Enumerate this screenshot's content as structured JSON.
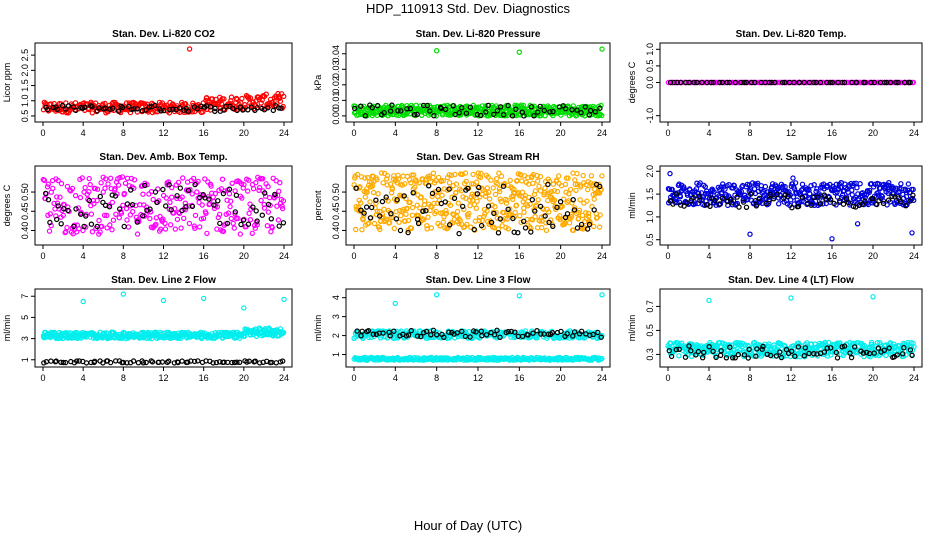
{
  "page": {
    "title": "HDP_110913  Std. Dev. Diagnostics",
    "x_title": "Hour of Day (UTC)"
  },
  "chart_data": [
    {
      "id": "co2",
      "type": "scatter",
      "title": "Stan. Dev. Li-820 CO2",
      "ylabel": "Licor ppm",
      "xlim": [
        0,
        24
      ],
      "ylim": [
        0.4,
        2.8
      ],
      "yticks": [
        "0.5",
        "1.0",
        "1.5",
        "2.0",
        "2.5"
      ],
      "ytick_values": [
        0.5,
        1.0,
        1.5,
        2.0,
        2.5
      ],
      "xticks": [
        0,
        4,
        8,
        12,
        16,
        20,
        24
      ],
      "series": [
        {
          "color": "#ff0000",
          "band": [
            0.6,
            0.95
          ],
          "count": 300,
          "extra": [
            [
              14.6,
              2.7
            ],
            [
              16.3,
              1.1
            ]
          ],
          "drift": [
            [
              16,
              0.15
            ],
            [
              24,
              0.3
            ]
          ]
        },
        {
          "color": "#000000",
          "band": [
            0.65,
            0.85
          ],
          "count": 70
        }
      ]
    },
    {
      "id": "pressure",
      "type": "scatter",
      "title": "Stan. Dev. Li-820 Pressure",
      "ylabel": "kPa",
      "xlim": [
        0,
        24
      ],
      "ylim": [
        -0.002,
        0.045
      ],
      "yticks": [
        "0.00",
        "0.01",
        "0.02",
        "0.03",
        "0.04"
      ],
      "ytick_values": [
        0,
        0.01,
        0.02,
        0.03,
        0.04
      ],
      "xticks": [
        0,
        4,
        8,
        12,
        16,
        20,
        24
      ],
      "series": [
        {
          "color": "#00dd00",
          "band": [
            0.0,
            0.007
          ],
          "count": 420,
          "extra": [
            [
              8,
              0.042
            ],
            [
              16,
              0.041
            ],
            [
              24,
              0.043
            ]
          ]
        },
        {
          "color": "#000000",
          "band": [
            0.0,
            0.007
          ],
          "count": 60
        }
      ]
    },
    {
      "id": "temp",
      "type": "scatter",
      "title": "Stan. Dev. Li-820 Temp.",
      "ylabel": "degrees C",
      "xlim": [
        0,
        24
      ],
      "ylim": [
        -1.1,
        1.1
      ],
      "yticks": [
        "-1.0",
        "0.0",
        "0.5",
        "1.0"
      ],
      "ytick_values": [
        -1.0,
        0.0,
        0.5,
        1.0
      ],
      "xticks": [
        0,
        4,
        8,
        12,
        16,
        20,
        24
      ],
      "series": [
        {
          "color": "#ff00ff",
          "band": [
            0.0,
            0.0
          ],
          "count": 180
        },
        {
          "color": "#000000",
          "band": [
            0.0,
            0.0
          ],
          "count": 60
        }
      ]
    },
    {
      "id": "ambbox",
      "type": "scatter",
      "title": "Stan. Dev. Amb. Box Temp.",
      "ylabel": "degrees C",
      "xlim": [
        0,
        24
      ],
      "ylim": [
        0.37,
        0.56
      ],
      "yticks": [
        "0.40",
        "0.45",
        "0.50"
      ],
      "ytick_values": [
        0.4,
        0.45,
        0.5
      ],
      "xticks": [
        0,
        4,
        8,
        12,
        16,
        20,
        24
      ],
      "series": [
        {
          "color": "#ff00ff",
          "band": [
            0.39,
            0.54
          ],
          "count": 320
        },
        {
          "color": "#000000",
          "band": [
            0.41,
            0.52
          ],
          "count": 70
        }
      ]
    },
    {
      "id": "rh",
      "type": "scatter",
      "title": "Stan. Dev. Gas Stream RH",
      "ylabel": "percent",
      "xlim": [
        0,
        24
      ],
      "ylim": [
        0.37,
        0.56
      ],
      "yticks": [
        "0.40",
        "0.45",
        "0.50"
      ],
      "ytick_values": [
        0.4,
        0.45,
        0.5
      ],
      "xticks": [
        0,
        4,
        8,
        12,
        16,
        20,
        24
      ],
      "series": [
        {
          "color": "#ffaa00",
          "band": [
            0.4,
            0.55
          ],
          "count": 520
        },
        {
          "color": "#000000",
          "band": [
            0.39,
            0.52
          ],
          "count": 70
        }
      ]
    },
    {
      "id": "sampleflow",
      "type": "scatter",
      "title": "Stan. Dev. Sample Flow",
      "ylabel": "ml/min",
      "xlim": [
        0,
        24
      ],
      "ylim": [
        0.45,
        2.05
      ],
      "yticks": [
        "0.5",
        "1.0",
        "1.5",
        "2.0"
      ],
      "ytick_values": [
        0.5,
        1.0,
        1.5,
        2.0
      ],
      "xticks": [
        0,
        4,
        8,
        12,
        16,
        20,
        24
      ],
      "series": [
        {
          "color": "#0000dd",
          "band": [
            1.25,
            1.75
          ],
          "count": 420,
          "extra": [
            [
              0.2,
              1.95
            ],
            [
              8,
              0.62
            ],
            [
              16,
              0.52
            ],
            [
              18.5,
              0.85
            ],
            [
              23.8,
              0.65
            ],
            [
              12.2,
              1.85
            ]
          ]
        },
        {
          "color": "#000000",
          "band": [
            1.2,
            1.5
          ],
          "count": 70
        }
      ]
    },
    {
      "id": "line2",
      "type": "scatter",
      "title": "Stan. Dev. Line 2 Flow",
      "ylabel": "ml/min",
      "xlim": [
        0,
        24
      ],
      "ylim": [
        0.6,
        7.4
      ],
      "yticks": [
        "1",
        "3",
        "5",
        "7"
      ],
      "ytick_values": [
        1,
        3,
        5,
        7
      ],
      "xticks": [
        0,
        4,
        8,
        12,
        16,
        20,
        24
      ],
      "series": [
        {
          "color": "#00eeee",
          "band": [
            3.0,
            3.6
          ],
          "count": 400,
          "extra": [
            [
              4,
              6.5
            ],
            [
              8,
              7.2
            ],
            [
              12,
              6.6
            ],
            [
              16,
              6.8
            ],
            [
              20,
              5.9
            ],
            [
              24,
              6.7
            ]
          ],
          "drift": [
            [
              20,
              0.4
            ],
            [
              24,
              0.4
            ]
          ]
        },
        {
          "color": "#000000",
          "band": [
            0.7,
            0.9
          ],
          "count": 75
        }
      ]
    },
    {
      "id": "line3",
      "type": "scatter",
      "title": "Stan. Dev. Line 3 Flow",
      "ylabel": "ml/min",
      "xlim": [
        0,
        24
      ],
      "ylim": [
        0.5,
        4.3
      ],
      "yticks": [
        "1",
        "2",
        "3",
        "4"
      ],
      "ytick_values": [
        1,
        2,
        3,
        4
      ],
      "xticks": [
        0,
        4,
        8,
        12,
        16,
        20,
        24
      ],
      "series": [
        {
          "color": "#00eeee",
          "band": [
            1.85,
            2.25
          ],
          "count": 300,
          "extra": [
            [
              4,
              3.7
            ],
            [
              8,
              4.15
            ],
            [
              16,
              4.1
            ],
            [
              24,
              4.15
            ]
          ]
        },
        {
          "color": "#00eeee",
          "band": [
            0.7,
            0.85
          ],
          "count": 300
        },
        {
          "color": "#000000",
          "band": [
            1.9,
            2.3
          ],
          "count": 70
        }
      ]
    },
    {
      "id": "line4",
      "type": "scatter",
      "title": "Stan. Dev. Line 4 (LT) Flow",
      "ylabel": "ml/min",
      "xlim": [
        0,
        24
      ],
      "ylim": [
        0.22,
        0.82
      ],
      "yticks": [
        "0.3",
        "0.5",
        "0.7"
      ],
      "ytick_values": [
        0.3,
        0.5,
        0.7
      ],
      "xticks": [
        0,
        4,
        8,
        12,
        16,
        20,
        24
      ],
      "series": [
        {
          "color": "#00eeee",
          "band": [
            0.28,
            0.4
          ],
          "count": 420,
          "extra": [
            [
              4,
              0.75
            ],
            [
              12,
              0.77
            ],
            [
              20,
              0.78
            ]
          ]
        },
        {
          "color": "#000000",
          "band": [
            0.27,
            0.37
          ],
          "count": 70
        }
      ]
    }
  ]
}
